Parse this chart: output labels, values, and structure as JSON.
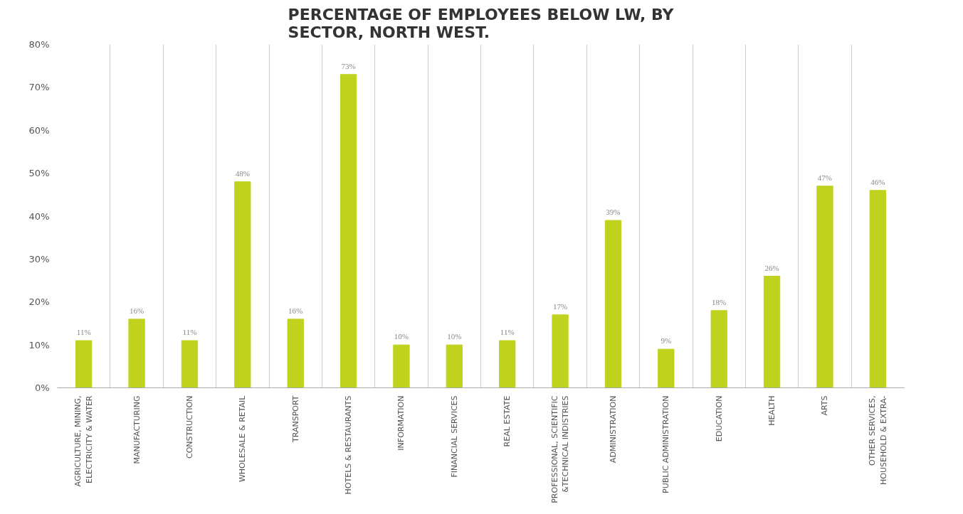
{
  "chart_data": {
    "type": "bar",
    "title": "PERCENTAGE OF EMPLOYEES BELOW LW, BY\nSECTOR, NORTH WEST.",
    "categories": [
      "AGRICULTURE, MINING,\nELECTRICITY & WATER",
      "MANUFACTURING",
      "CONSTRUCTION",
      "WHOLESALE & RETAIL",
      "TRANSPORT",
      "HOTELS & RESTAURANTS",
      "INFORMATION",
      "FINANCIAL SERVICES",
      "REAL ESTATE",
      "PROFESSIONAL, SCIENTIFIC\n&TECHNICAL INDISTRIES",
      "ADMINISTRATION",
      "PUBLIC ADMINISTRATION",
      "EDUCATION",
      "HEALTH",
      "ARTS",
      "OTHER SERVICES,\nHOUSEHOLD & EXTRA-"
    ],
    "values": [
      11,
      16,
      11,
      48,
      16,
      73,
      10,
      10,
      11,
      17,
      39,
      9,
      18,
      26,
      47,
      46
    ],
    "color": "#bfd21e",
    "ylim": [
      0,
      80
    ],
    "yticks": [
      {
        "value": 0,
        "label": "0%"
      },
      {
        "value": 10,
        "label": "10%"
      },
      {
        "value": 20,
        "label": "20%"
      },
      {
        "value": 30,
        "label": "30%"
      },
      {
        "value": 40,
        "label": "40%"
      },
      {
        "value": 50,
        "label": "50%"
      },
      {
        "value": 60,
        "label": "60%"
      },
      {
        "value": 70,
        "label": "70%"
      },
      {
        "value": 80,
        "label": "80%"
      }
    ],
    "grid": "x",
    "value_labels": [
      "11%",
      "16%",
      "11%",
      "48%",
      "16%",
      "73%",
      "10%",
      "10%",
      "11%",
      "17%",
      "39%",
      "9%",
      "18%",
      "26%",
      "47%",
      "46%"
    ]
  }
}
